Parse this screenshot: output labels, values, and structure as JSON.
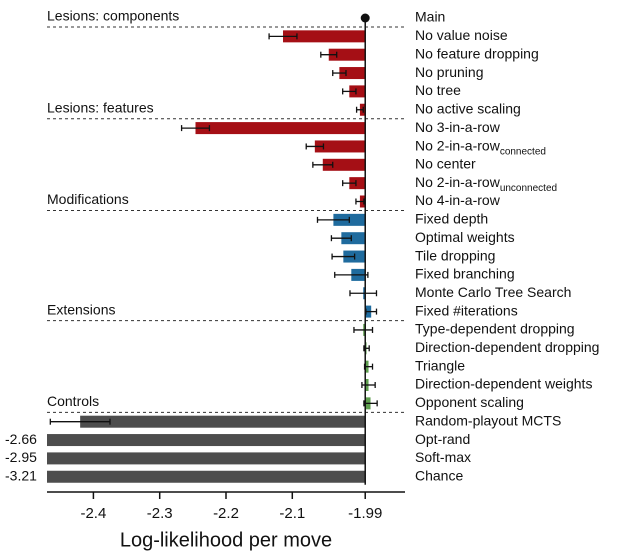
{
  "chart_data": {
    "type": "bar",
    "xlabel": "Log-likelihood per move",
    "xlim": [
      -2.47,
      -1.93
    ],
    "xticks": [
      -2.4,
      -2.3,
      -2.2,
      -2.1,
      -1.99
    ],
    "reference": {
      "name": "Main",
      "value": -1.99
    },
    "groups": [
      {
        "name": "Lesions: components",
        "color": "#a50f15",
        "categories": [
          "No value noise",
          "No feature dropping",
          "No pruning",
          "No tree",
          "No active scaling"
        ],
        "values": [
          -2.114,
          -2.045,
          -2.029,
          -2.014,
          -1.998
        ],
        "errors": [
          0.021,
          0.012,
          0.01,
          0.01,
          0.005
        ]
      },
      {
        "name": "Lesions: features",
        "color": "#a50f15",
        "categories": [
          "No 3-in-a-row",
          {
            "text": "No 2-in-a-row",
            "sub": "connected"
          },
          "No center",
          {
            "text": "No 2-in-a-row",
            "sub": "unconnected"
          },
          "No 4-in-a-row"
        ],
        "values": [
          -2.246,
          -2.066,
          -2.054,
          -2.014,
          -1.998
        ],
        "errors": [
          0.021,
          0.013,
          0.015,
          0.01,
          0.006
        ]
      },
      {
        "name": "Modifications",
        "color": "#1f6b9e",
        "categories": [
          "Fixed depth",
          "Optimal weights",
          "Tile dropping",
          "Fixed branching",
          "Monte Carlo Tree Search",
          "Fixed #iterations"
        ],
        "values": [
          -2.038,
          -2.026,
          -2.023,
          -2.011,
          -1.993,
          -1.981
        ],
        "errors": [
          0.024,
          0.015,
          0.017,
          0.025,
          0.02,
          0.008
        ]
      },
      {
        "name": "Extensions",
        "color": "#5e9e4e",
        "categories": [
          "Type-dependent dropping",
          "Direction-dependent dropping",
          "Triangle",
          "Direction-dependent weights",
          "Opponent scaling"
        ],
        "values": [
          -1.993,
          -1.988,
          -1.985,
          -1.985,
          -1.982
        ],
        "errors": [
          0.014,
          0.004,
          0.006,
          0.01,
          0.01
        ]
      },
      {
        "name": "Controls",
        "color": "#4d4d4d",
        "categories": [
          "Random-playout MCTS",
          "Opt-rand",
          "Soft-max",
          "Chance"
        ],
        "values": [
          -2.42,
          -2.66,
          -2.95,
          -3.21
        ],
        "errors": [
          0.045,
          null,
          null,
          null
        ]
      }
    ]
  }
}
